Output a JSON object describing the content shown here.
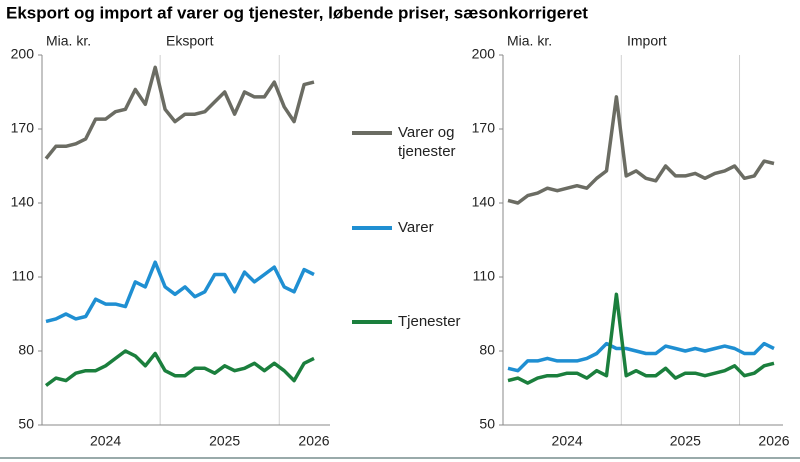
{
  "title": "Eksport og import af varer og tjenester, løbende priser, sæsonkorrigeret",
  "chart_data": [
    {
      "type": "line",
      "unit_label": "Mia. kr.",
      "subtitle": "Eksport",
      "categories": [
        null,
        null,
        null,
        null,
        null,
        null,
        "2024",
        null,
        null,
        null,
        null,
        null,
        null,
        null,
        null,
        null,
        null,
        null,
        "2025",
        null,
        null,
        null,
        null,
        null,
        null,
        null,
        null,
        "2026"
      ],
      "ylim": [
        50,
        200
      ],
      "yticks": [
        50,
        80,
        110,
        140,
        170,
        200
      ],
      "series": [
        {
          "name": "Varer og tjenester",
          "color": "#6b6c63",
          "values": [
            158,
            163,
            163,
            164,
            166,
            174,
            174,
            177,
            178,
            186,
            180,
            195,
            178,
            173,
            176,
            176,
            177,
            181,
            185,
            176,
            185,
            183,
            183,
            189,
            179,
            173,
            188,
            189
          ]
        },
        {
          "name": "Varer",
          "color": "#1f8fd2",
          "values": [
            92,
            93,
            95,
            93,
            94,
            101,
            99,
            99,
            98,
            108,
            106,
            116,
            106,
            103,
            106,
            102,
            104,
            111,
            111,
            104,
            112,
            108,
            111,
            114,
            106,
            104,
            113,
            111
          ]
        },
        {
          "name": "Tjenester",
          "color": "#1b7f3d",
          "values": [
            66,
            69,
            68,
            71,
            72,
            72,
            74,
            77,
            80,
            78,
            74,
            79,
            72,
            70,
            70,
            73,
            73,
            71,
            74,
            72,
            73,
            75,
            72,
            75,
            72,
            68,
            75,
            77
          ]
        }
      ]
    },
    {
      "type": "line",
      "unit_label": "Mia. kr.",
      "subtitle": "Import",
      "categories": [
        null,
        null,
        null,
        null,
        null,
        null,
        "2024",
        null,
        null,
        null,
        null,
        null,
        null,
        null,
        null,
        null,
        null,
        null,
        "2025",
        null,
        null,
        null,
        null,
        null,
        null,
        null,
        null,
        "2026"
      ],
      "ylim": [
        50,
        200
      ],
      "yticks": [
        50,
        80,
        110,
        140,
        170,
        200
      ],
      "series": [
        {
          "color": "#6b6c63",
          "values": [
            141,
            140,
            143,
            144,
            146,
            145,
            146,
            147,
            146,
            150,
            153,
            183,
            151,
            153,
            150,
            149,
            155,
            151,
            151,
            152,
            150,
            152,
            153,
            155,
            150,
            151,
            157,
            156
          ]
        },
        {
          "color": "#1f8fd2",
          "values": [
            73,
            72,
            76,
            76,
            77,
            76,
            76,
            76,
            77,
            79,
            83,
            81,
            81,
            80,
            79,
            79,
            82,
            81,
            80,
            81,
            80,
            81,
            82,
            81,
            79,
            79,
            83,
            81
          ]
        },
        {
          "color": "#1b7f3d",
          "values": [
            68,
            69,
            67,
            69,
            70,
            70,
            71,
            71,
            69,
            72,
            70,
            103,
            70,
            72,
            70,
            70,
            73,
            69,
            71,
            71,
            70,
            71,
            72,
            74,
            70,
            71,
            74,
            75
          ]
        }
      ]
    }
  ]
}
